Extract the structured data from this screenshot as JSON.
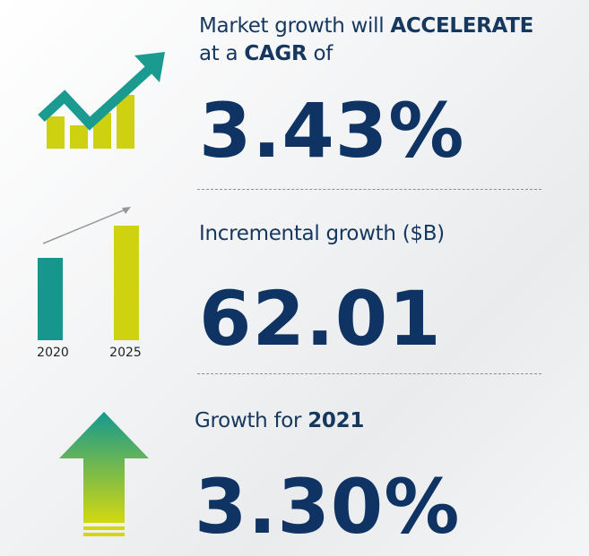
{
  "cagr": {
    "line1_text": "Market growth will",
    "line1_bold": "ACCELERATE",
    "line2_text": "at a",
    "line2_bold": "CAGR",
    "line2_end": "of",
    "value": "3.43%"
  },
  "incremental": {
    "heading": "Incremental growth ($B)",
    "value": "62.01",
    "years": [
      "2020",
      "2025"
    ]
  },
  "yoy": {
    "text": "Growth for",
    "bold": "2021",
    "value": "3.30%"
  }
}
